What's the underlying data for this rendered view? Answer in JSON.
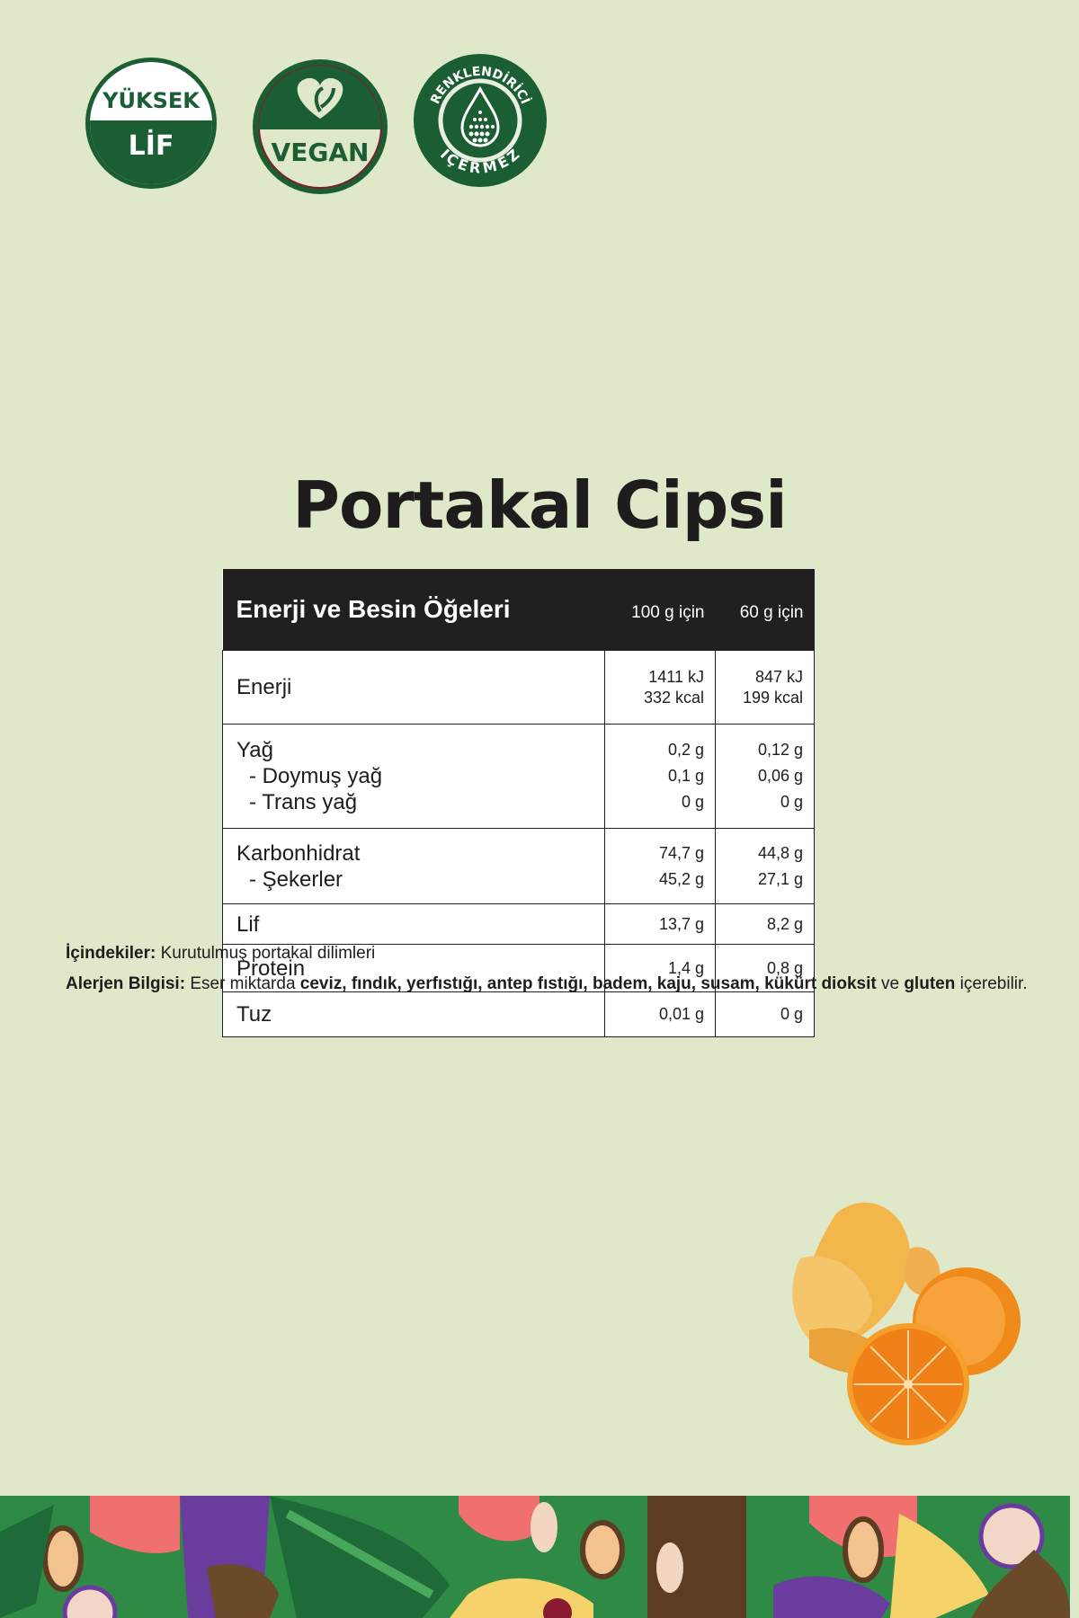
{
  "badges": [
    {
      "top": "YÜKSEK",
      "bottom": "LİF"
    },
    {
      "bottom": "VEGAN"
    },
    {
      "top": "RENKLENDİRİCİ",
      "bottom": "İÇERMEZ"
    }
  ],
  "colors": {
    "background": "#dfe9c9",
    "badge_green": "#1b5e34",
    "table_header": "#231f20"
  },
  "product_title": "Portakal Cipsi",
  "table": {
    "header": {
      "name": "Enerji ve Besin Öğeleri",
      "col1": "100 g için",
      "col2": "60 g için"
    },
    "groups": [
      {
        "rows": [
          {
            "label": "Enerji",
            "v1": "1411 kJ",
            "v2": "847 kJ",
            "v1b": "332 kcal",
            "v2b": "199 kcal"
          }
        ]
      },
      {
        "rows": [
          {
            "label": "Yağ",
            "v1": "0,2 g",
            "v2": "0,12 g"
          },
          {
            "label": "- Doymuş yağ",
            "v1": "0,1 g",
            "v2": "0,06 g"
          },
          {
            "label": "- Trans yağ",
            "v1": "0 g",
            "v2": "0 g"
          }
        ]
      },
      {
        "rows": [
          {
            "label": "Karbonhidrat",
            "v1": "74,7 g",
            "v2": "44,8 g"
          },
          {
            "label": "- Şekerler",
            "v1": "45,2 g",
            "v2": "27,1 g"
          }
        ]
      },
      {
        "rows": [
          {
            "label": "Lif",
            "v1": "13,7 g",
            "v2": "8,2 g"
          }
        ]
      },
      {
        "rows": [
          {
            "label": "Protein",
            "v1": "1,4 g",
            "v2": "0,8 g"
          }
        ]
      },
      {
        "rows": [
          {
            "label": "Tuz",
            "v1": "0,01 g",
            "v2": "0 g"
          }
        ]
      }
    ]
  },
  "ingredients": {
    "label": "İçindekiler:",
    "text": "Kurutulmuş portakal dilimleri"
  },
  "allergen": {
    "label": "Alerjen Bilgisi:",
    "t1": "Eser miktarda",
    "b1": "ceviz, fındık, yerfıstığı, antep fıstığı, badem, kaju, susam, kükürt dioksit",
    "t2": "ve",
    "b2": "gluten",
    "t3": "içerebilir."
  }
}
